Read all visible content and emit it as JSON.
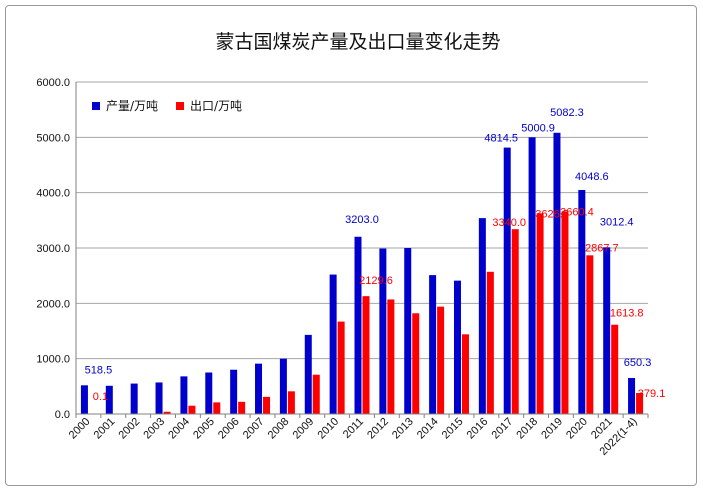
{
  "chart_data": {
    "type": "bar",
    "title": "蒙古国煤炭产量及出口量变化走势",
    "categories": [
      "2000",
      "2001",
      "2002",
      "2003",
      "2004",
      "2005",
      "2006",
      "2007",
      "2008",
      "2009",
      "2010",
      "2011",
      "2012",
      "2013",
      "2014",
      "2015",
      "2016",
      "2017",
      "2018",
      "2019",
      "2020",
      "2021",
      "2022(1-4)"
    ],
    "ylim": [
      0,
      6000
    ],
    "yticks": [
      "0.0",
      "1000.0",
      "2000.0",
      "3000.0",
      "4000.0",
      "5000.0",
      "6000.0"
    ],
    "grid": "horizontal",
    "legend_position": "top-left",
    "series": [
      {
        "name": "产量/万吨",
        "color": "#0000cc",
        "values": [
          518.5,
          510,
          550,
          570,
          680,
          750,
          800,
          910,
          1000,
          1430,
          2520,
          3203.0,
          2990,
          3000,
          2510,
          2410,
          3540,
          4814.5,
          5000.9,
          5082.3,
          4048.6,
          3012.4,
          650.3
        ],
        "labels": [
          "518.5",
          "",
          "",
          "",
          "",
          "",
          "",
          "",
          "",
          "",
          "",
          "3203.0",
          "",
          "",
          "",
          "",
          "",
          "4814.5",
          "5000.9",
          "5082.3",
          "4048.6",
          "3012.4",
          "650.3"
        ]
      },
      {
        "name": "出口/万吨",
        "color": "#ff0000",
        "values": [
          0.1,
          0,
          0,
          40,
          150,
          210,
          220,
          310,
          410,
          710,
          1670,
          2129.6,
          2070,
          1820,
          1940,
          1440,
          2570,
          3340.0,
          3626.5,
          3660.4,
          2867.7,
          1613.8,
          379.1
        ],
        "labels": [
          "0.1",
          "",
          "",
          "",
          "",
          "",
          "",
          "",
          "",
          "",
          "",
          "2129.6",
          "",
          "",
          "",
          "",
          "",
          "3340.0",
          "3626.5",
          "3660.4",
          "2867.7",
          "1613.8",
          "379.1"
        ]
      }
    ]
  }
}
